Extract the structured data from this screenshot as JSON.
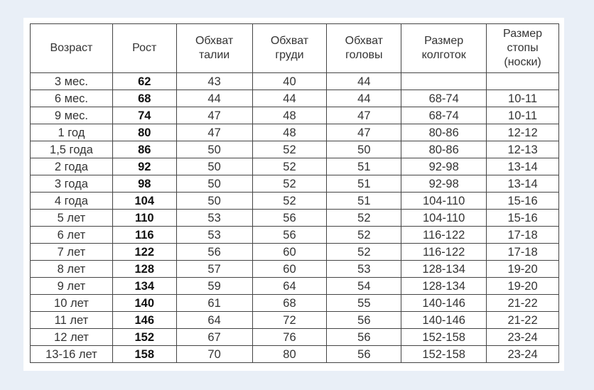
{
  "headers": [
    "Возраст",
    "Рост",
    "Обхват талии",
    "Обхват груди",
    "Обхват головы",
    "Размер колготок",
    "Размер стопы (носки)"
  ],
  "rows": [
    [
      "3 мес.",
      "62",
      "43",
      "40",
      "44",
      "",
      ""
    ],
    [
      "6 мес.",
      "68",
      "44",
      "44",
      "44",
      "68-74",
      "10-11"
    ],
    [
      "9 мес.",
      "74",
      "47",
      "48",
      "47",
      "68-74",
      "10-11"
    ],
    [
      "1 год",
      "80",
      "47",
      "48",
      "47",
      "80-86",
      "12-12"
    ],
    [
      "1,5 года",
      "86",
      "50",
      "52",
      "50",
      "80-86",
      "12-13"
    ],
    [
      "2 года",
      "92",
      "50",
      "52",
      "51",
      "92-98",
      "13-14"
    ],
    [
      "3 года",
      "98",
      "50",
      "52",
      "51",
      "92-98",
      "13-14"
    ],
    [
      "4 года",
      "104",
      "50",
      "52",
      "51",
      "104-110",
      "15-16"
    ],
    [
      "5 лет",
      "110",
      "53",
      "56",
      "52",
      "104-110",
      "15-16"
    ],
    [
      "6 лет",
      "116",
      "53",
      "56",
      "52",
      "116-122",
      "17-18"
    ],
    [
      "7 лет",
      "122",
      "56",
      "60",
      "52",
      "116-122",
      "17-18"
    ],
    [
      "8 лет",
      "128",
      "57",
      "60",
      "53",
      "128-134",
      "19-20"
    ],
    [
      "9 лет",
      "134",
      "59",
      "64",
      "54",
      "128-134",
      "19-20"
    ],
    [
      "10 лет",
      "140",
      "61",
      "68",
      "55",
      "140-146",
      "21-22"
    ],
    [
      "11 лет",
      "146",
      "64",
      "72",
      "56",
      "140-146",
      "21-22"
    ],
    [
      "12 лет",
      "152",
      "67",
      "76",
      "56",
      "152-158",
      "23-24"
    ],
    [
      "13-16 лет",
      "158",
      "70",
      "80",
      "56",
      "152-158",
      "23-24"
    ]
  ]
}
